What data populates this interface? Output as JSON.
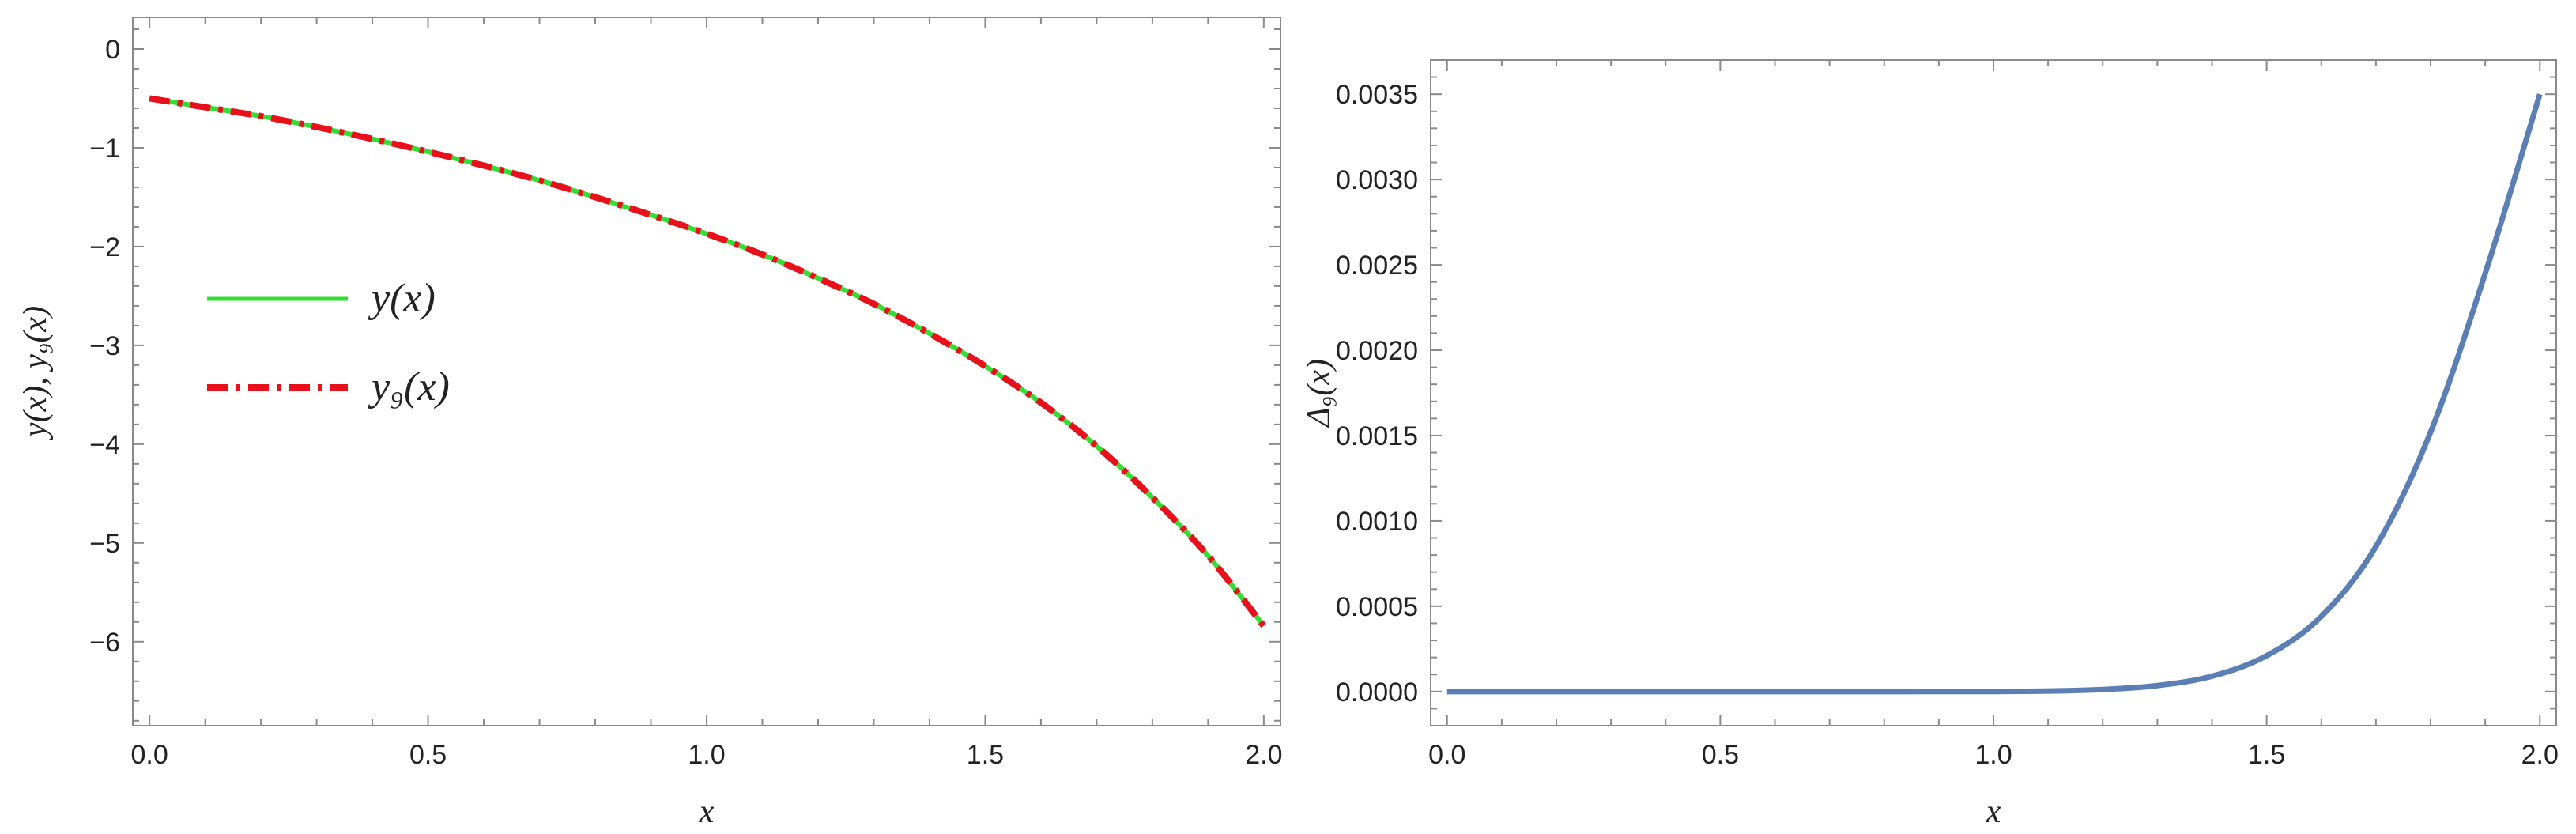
{
  "chart_data": [
    {
      "type": "line",
      "xlabel": "x",
      "ylabel": "y(x), y₉(x)",
      "xlim": [
        -0.03,
        2.03
      ],
      "ylim": [
        -6.85,
        0.32
      ],
      "x_ticks": [
        0.0,
        0.5,
        1.0,
        1.5,
        2.0
      ],
      "x_tick_labels": [
        "0.0",
        "0.5",
        "1.0",
        "1.5",
        "2.0"
      ],
      "y_ticks": [
        0,
        -1,
        -2,
        -3,
        -4,
        -5,
        -6
      ],
      "y_tick_labels": [
        "0",
        "−1",
        "−2",
        "−3",
        "−4",
        "−5",
        "−6"
      ],
      "grid": false,
      "legend_position": "left-center",
      "x": [
        0.0,
        0.1,
        0.2,
        0.3,
        0.4,
        0.5,
        0.6,
        0.7,
        0.8,
        0.9,
        1.0,
        1.1,
        1.2,
        1.3,
        1.4,
        1.5,
        1.6,
        1.7,
        1.8,
        1.9,
        2.0
      ],
      "series": [
        {
          "name": "y(x)",
          "color": "#33dd33",
          "style": "solid",
          "values": [
            -0.5,
            -0.59,
            -0.68,
            -0.79,
            -0.91,
            -1.04,
            -1.18,
            -1.33,
            -1.5,
            -1.68,
            -1.87,
            -2.08,
            -2.32,
            -2.58,
            -2.88,
            -3.21,
            -3.58,
            -4.02,
            -4.54,
            -5.13,
            -5.84
          ]
        },
        {
          "name": "y₉(x)",
          "color": "#e8101a",
          "style": "dashdot",
          "values": [
            -0.5,
            -0.59,
            -0.68,
            -0.79,
            -0.91,
            -1.04,
            -1.18,
            -1.33,
            -1.5,
            -1.68,
            -1.87,
            -2.08,
            -2.32,
            -2.58,
            -2.88,
            -3.21,
            -3.58,
            -4.02,
            -4.54,
            -5.13,
            -5.84
          ]
        }
      ],
      "legend": [
        {
          "label": "y(x)",
          "color": "#33dd33",
          "style": "solid"
        },
        {
          "label": "y₉(x)",
          "color": "#e8101a",
          "style": "dashdot"
        }
      ]
    },
    {
      "type": "line",
      "xlabel": "x",
      "ylabel": "Δ₉(x)",
      "xlim": [
        -0.03,
        2.03
      ],
      "ylim": [
        -0.0002,
        0.0037
      ],
      "x_ticks": [
        0.0,
        0.5,
        1.0,
        1.5,
        2.0
      ],
      "x_tick_labels": [
        "0.0",
        "0.5",
        "1.0",
        "1.5",
        "2.0"
      ],
      "y_ticks": [
        0.0,
        0.0005,
        0.001,
        0.0015,
        0.002,
        0.0025,
        0.003,
        0.0035
      ],
      "y_tick_labels": [
        "0.0000",
        "0.0005",
        "0.0010",
        "0.0015",
        "0.0020",
        "0.0025",
        "0.0030",
        "0.0035"
      ],
      "grid": false,
      "x": [
        0.0,
        0.2,
        0.4,
        0.6,
        0.8,
        1.0,
        1.1,
        1.2,
        1.3,
        1.4,
        1.5,
        1.6,
        1.7,
        1.8,
        1.9,
        2.0
      ],
      "series": [
        {
          "color": "#5b7fb5",
          "style": "solid",
          "values": [
            0.0,
            0.0,
            0.0,
            0.0,
            0.0,
            5e-07,
            3e-06,
            1.2e-05,
            3.5e-05,
            9e-05,
            0.00021,
            0.00044,
            0.00085,
            0.00152,
            0.00245,
            0.0035
          ]
        }
      ]
    }
  ]
}
